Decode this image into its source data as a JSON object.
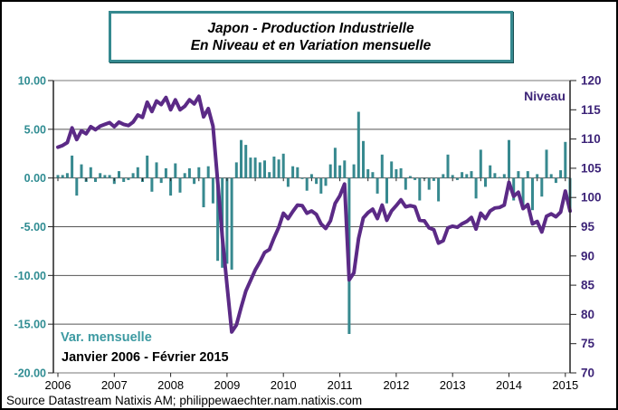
{
  "title": {
    "line1": "Japon - Production Industrielle",
    "line2": "En Niveau et en Variation mensuelle"
  },
  "labels": {
    "niveau": "Niveau",
    "var_mensuelle": "Var. mensuelle",
    "period": "Janvier 2006 - Février 2015"
  },
  "source": "Source Datastream Natixis AM; philippewaechter.nam.natixis.com",
  "colors": {
    "bar_teal": "#37898f",
    "left_axis_text": "#2f8c92",
    "var_label_teal": "#3d9aa2",
    "line_purple": "#5b2a86",
    "right_axis_text": "#3d2478",
    "title_border": "#35898f",
    "grid": "#555555",
    "axis": "#222222"
  },
  "chart_data": {
    "type": "bar+line",
    "frequency": "monthly",
    "x_start": "2006-01",
    "x_end": "2015-02",
    "x_axis": {
      "tick_labels": [
        "2006",
        "2007",
        "2008",
        "2009",
        "2010",
        "2011",
        "2012",
        "2013",
        "2014",
        "2015"
      ]
    },
    "left_axis": {
      "min": -20,
      "max": 10,
      "tick_values": [
        10,
        5,
        0,
        -5,
        -10,
        -15,
        -20
      ],
      "tick_labels": [
        "10.00",
        "5.00",
        "0.00",
        "-5.00",
        "-10.00",
        "-15.00",
        "-20.00"
      ],
      "series_label": "Var. mensuelle"
    },
    "right_axis": {
      "min": 70,
      "max": 120,
      "tick_values": [
        120,
        115,
        110,
        105,
        100,
        95,
        90,
        85,
        80,
        75,
        70
      ],
      "tick_labels": [
        "120",
        "115",
        "110",
        "105",
        "100",
        "95",
        "90",
        "85",
        "80",
        "75",
        "70"
      ],
      "series_label": "Niveau"
    },
    "series": [
      {
        "name": "Var. mensuelle",
        "type": "bar",
        "axis": "left",
        "color": "#37898f",
        "values": [
          0.3,
          0.3,
          0.5,
          2.3,
          -1.8,
          1.4,
          -0.4,
          1.1,
          -0.4,
          0.5,
          0.3,
          0.3,
          -0.6,
          0.7,
          -0.4,
          -0.2,
          0.5,
          1.1,
          -0.4,
          2.3,
          -1.4,
          1.6,
          -0.5,
          1.0,
          -1.8,
          1.5,
          -1.5,
          0.5,
          1.0,
          -0.6,
          1.1,
          -3.0,
          1.2,
          -2.6,
          -8.5,
          -9.2,
          -8.8,
          -9.4,
          1.6,
          3.9,
          3.4,
          2.1,
          2.1,
          1.6,
          1.8,
          0.6,
          2.2,
          1.9,
          2.5,
          -0.9,
          1.2,
          1.1,
          -0.1,
          -1.3,
          0.4,
          -0.6,
          -1.6,
          -0.8,
          1.4,
          3.1,
          1.3,
          1.8,
          -16.0,
          1.4,
          6.8,
          3.8,
          0.9,
          0.6,
          -1.6,
          2.4,
          -2.6,
          1.7,
          0.9,
          1.0,
          -1.2,
          0.2,
          -0.2,
          -2.3,
          -0.1,
          -1.2,
          -0.3,
          -2.4,
          0.4,
          2.4,
          0.3,
          -0.2,
          0.6,
          0.4,
          0.7,
          -2.1,
          2.9,
          -0.9,
          1.3,
          0.5,
          0.1,
          0.4,
          3.9,
          -2.3,
          0.7,
          -2.8,
          0.7,
          -3.3,
          0.4,
          -1.9,
          2.9,
          0.4,
          -0.5,
          0.8,
          3.7,
          -3.4
        ]
      },
      {
        "name": "Niveau",
        "type": "line",
        "axis": "right",
        "color": "#5b2a86",
        "values": [
          108.6,
          108.9,
          109.4,
          111.9,
          109.9,
          111.4,
          110.9,
          112.1,
          111.6,
          112.2,
          112.5,
          112.8,
          112.1,
          112.9,
          112.5,
          112.3,
          112.9,
          114.1,
          113.7,
          116.3,
          114.7,
          116.5,
          115.9,
          117.1,
          115.0,
          116.7,
          115.0,
          115.6,
          116.7,
          116.0,
          117.3,
          113.8,
          115.2,
          112.2,
          102.7,
          93.2,
          85.0,
          77.0,
          78.2,
          81.2,
          84.0,
          85.8,
          87.6,
          89.0,
          90.6,
          91.1,
          93.1,
          94.9,
          97.3,
          96.4,
          97.6,
          98.7,
          98.6,
          97.3,
          97.7,
          97.1,
          95.5,
          94.7,
          96.0,
          99.0,
          100.3,
          102.3,
          85.9,
          87.1,
          93.0,
          96.5,
          97.4,
          98.0,
          96.4,
          98.7,
          96.1,
          97.7,
          98.6,
          99.6,
          98.4,
          98.6,
          98.4,
          96.1,
          96.0,
          94.8,
          94.5,
          92.2,
          92.6,
          94.8,
          95.1,
          94.9,
          95.5,
          95.9,
          96.6,
          94.6,
          97.3,
          96.4,
          97.7,
          98.2,
          98.3,
          98.7,
          102.6,
          100.2,
          100.9,
          98.1,
          98.8,
          95.5,
          95.9,
          94.1,
          96.8,
          97.2,
          96.7,
          97.5,
          101.1,
          97.7
        ]
      }
    ]
  }
}
